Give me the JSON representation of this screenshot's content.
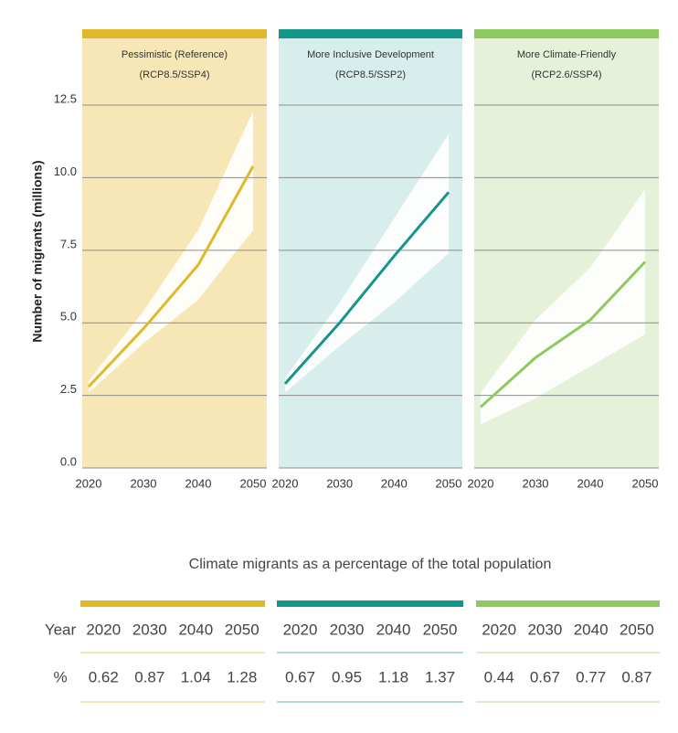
{
  "chart_data": [
    {
      "type": "line",
      "title": "Pessimistic (Reference)",
      "subtitle": "(RCP8.5/SSP4)",
      "ylabel": "Number of migrants (millions)",
      "x": [
        2020,
        2030,
        2040,
        2050
      ],
      "xlim": [
        2020,
        2050
      ],
      "ylim": [
        0,
        14.8
      ],
      "yticks": [
        {
          "value": 0,
          "label": "0.0"
        },
        2.5,
        {
          "value": 5,
          "label": "5.0"
        },
        7.5,
        {
          "value": 10,
          "label": "10.0"
        },
        12.5
      ],
      "color": "#e0b829",
      "background": "#f8e7b6",
      "grid": true,
      "series": [
        {
          "color": "#e0b829",
          "values": [
            2.8,
            4.8,
            7.0,
            10.4
          ],
          "lower": [
            2.6,
            4.3,
            5.8,
            8.2
          ],
          "upper": [
            3.0,
            5.4,
            8.2,
            12.3
          ]
        }
      ]
    },
    {
      "type": "line",
      "title": "More Inclusive Development",
      "subtitle": "(RCP8.5/SSP2)",
      "x": [
        2020,
        2030,
        2040,
        2050
      ],
      "xlim": [
        2020,
        2050
      ],
      "color": "#14958a",
      "background": "#d7eeec",
      "grid": true,
      "series": [
        {
          "color": "#14958a",
          "values": [
            2.9,
            5.0,
            7.3,
            9.5
          ],
          "lower": [
            2.6,
            4.2,
            5.7,
            7.4
          ],
          "upper": [
            3.1,
            5.7,
            8.6,
            11.5
          ]
        }
      ]
    },
    {
      "type": "line",
      "title": "More Climate-Friendly",
      "subtitle": "(RCP2.6/SSP4)",
      "x": [
        2020,
        2030,
        2040,
        2050
      ],
      "xlim": [
        2020,
        2050
      ],
      "color": "#8cc95e",
      "background": "#e5f1d8",
      "grid": true,
      "series": [
        {
          "color": "#8cc95e",
          "values": [
            2.1,
            3.8,
            5.1,
            7.1
          ],
          "lower": [
            1.5,
            2.4,
            3.5,
            4.6
          ],
          "upper": [
            2.6,
            5.1,
            6.9,
            9.6
          ]
        }
      ]
    }
  ],
  "table": {
    "title": "Climate migrants as a percentage of the total population",
    "row_labels": [
      "Year",
      "%"
    ],
    "groups": [
      {
        "color": "#e0b829",
        "years": [
          2020,
          2030,
          2040,
          2050
        ],
        "values": [
          0.62,
          0.87,
          1.04,
          1.28
        ]
      },
      {
        "color": "#14958a",
        "years": [
          2020,
          2030,
          2040,
          2050
        ],
        "values": [
          0.67,
          0.95,
          1.18,
          1.37
        ]
      },
      {
        "color": "#8cc95e",
        "years": [
          2020,
          2030,
          2040,
          2050
        ],
        "values": [
          0.44,
          0.67,
          0.77,
          0.87
        ]
      }
    ]
  }
}
